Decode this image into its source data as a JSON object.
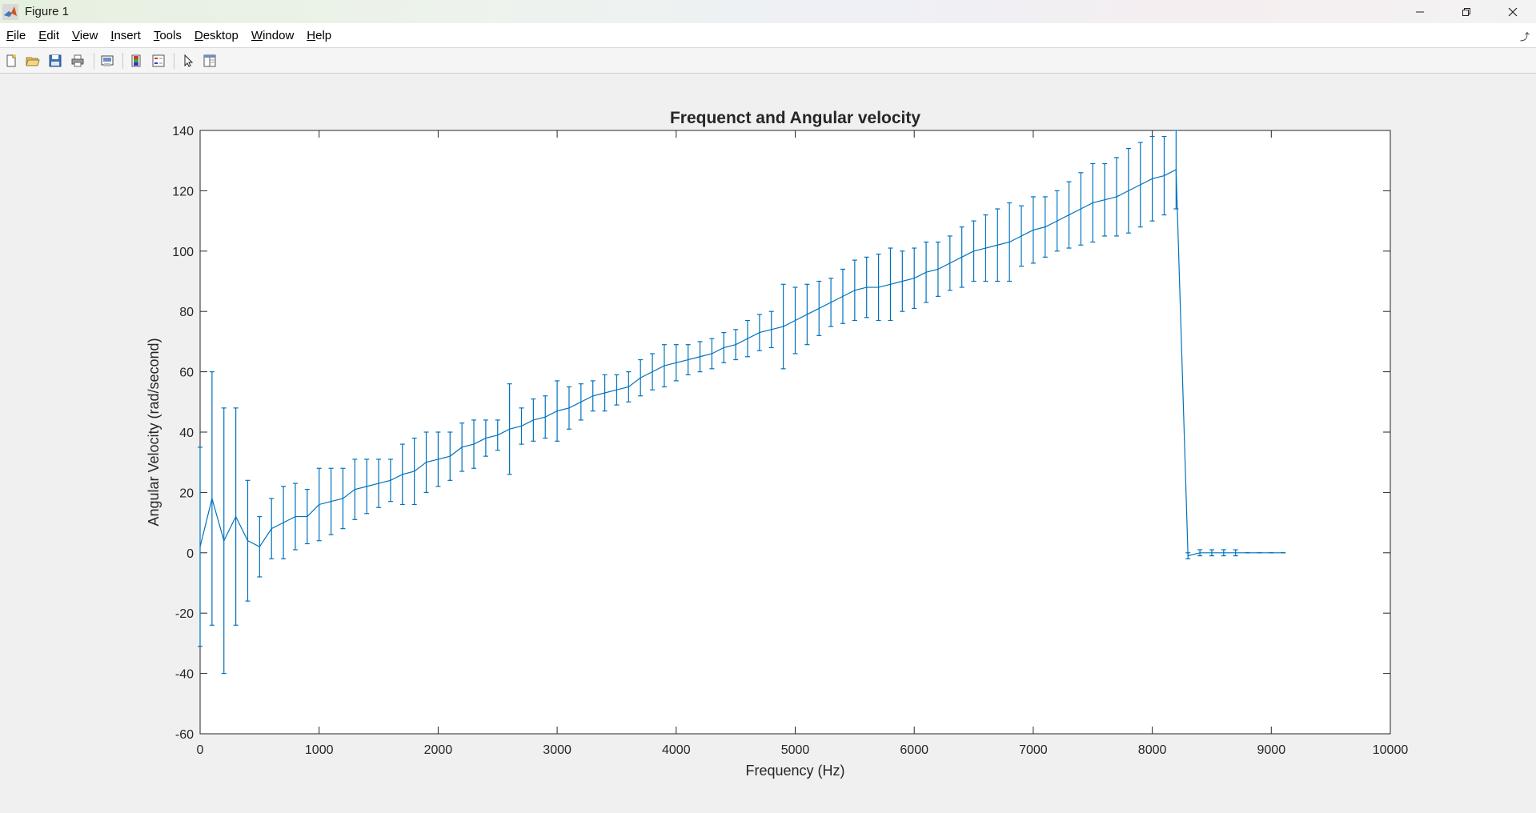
{
  "window": {
    "title": "Figure 1",
    "controls": [
      "minimize-icon",
      "restore-icon",
      "close-icon"
    ]
  },
  "menu": {
    "items": [
      "File",
      "Edit",
      "View",
      "Insert",
      "Tools",
      "Desktop",
      "Window",
      "Help"
    ]
  },
  "toolbar": {
    "icons": [
      "new-figure-icon",
      "open-file-icon",
      "save-icon",
      "print-icon",
      "print-preview-icon",
      "colorbar-icon",
      "legend-icon",
      "select-pointer-icon",
      "property-editor-icon"
    ]
  },
  "colors": {
    "line": "#0072BD",
    "axes": "#262626",
    "plot_bg": "#ffffff",
    "figure_bg": "#f0f0f0"
  },
  "chart_data": {
    "type": "line",
    "subtype": "errorbar",
    "title": "Frequenct and Angular velocity",
    "xlabel": "Frequency (Hz)",
    "ylabel": "Angular Velocity (rad/second)",
    "xlim": [
      0,
      10000
    ],
    "ylim": [
      -60,
      140
    ],
    "xticks": [
      0,
      1000,
      2000,
      3000,
      4000,
      5000,
      6000,
      7000,
      8000,
      9000,
      10000
    ],
    "yticks": [
      -60,
      -40,
      -20,
      0,
      20,
      40,
      60,
      80,
      100,
      120,
      140
    ],
    "grid": false,
    "series": [
      {
        "name": "Angular velocity",
        "x": [
          0,
          100,
          200,
          300,
          400,
          500,
          600,
          700,
          800,
          900,
          1000,
          1100,
          1200,
          1300,
          1400,
          1500,
          1600,
          1700,
          1800,
          1900,
          2000,
          2100,
          2200,
          2300,
          2400,
          2500,
          2600,
          2700,
          2800,
          2900,
          3000,
          3100,
          3200,
          3300,
          3400,
          3500,
          3600,
          3700,
          3800,
          3900,
          4000,
          4100,
          4200,
          4300,
          4400,
          4500,
          4600,
          4700,
          4800,
          4900,
          5000,
          5100,
          5200,
          5300,
          5400,
          5500,
          5600,
          5700,
          5800,
          5900,
          6000,
          6100,
          6200,
          6300,
          6400,
          6500,
          6600,
          6700,
          6800,
          6900,
          7000,
          7100,
          7200,
          7300,
          7400,
          7500,
          7600,
          7700,
          7800,
          7900,
          8000,
          8100,
          8200,
          8300,
          8400,
          8500,
          8600,
          8700,
          8800,
          8900,
          9000,
          9100
        ],
        "y": [
          2,
          18,
          4,
          12,
          4,
          2,
          8,
          10,
          12,
          12,
          16,
          17,
          18,
          21,
          22,
          23,
          24,
          26,
          27,
          30,
          31,
          32,
          35,
          36,
          38,
          39,
          41,
          42,
          44,
          45,
          47,
          48,
          50,
          52,
          53,
          54,
          55,
          58,
          60,
          62,
          63,
          64,
          65,
          66,
          68,
          69,
          71,
          73,
          74,
          75,
          77,
          79,
          81,
          83,
          85,
          87,
          88,
          88,
          89,
          90,
          91,
          93,
          94,
          96,
          98,
          100,
          101,
          102,
          103,
          105,
          107,
          108,
          110,
          112,
          114,
          116,
          117,
          118,
          120,
          122,
          124,
          125,
          127,
          -1,
          0,
          0,
          0,
          0,
          0,
          0,
          0,
          0
        ],
        "err": [
          33,
          42,
          44,
          36,
          20,
          10,
          10,
          12,
          11,
          9,
          12,
          11,
          10,
          10,
          9,
          8,
          7,
          10,
          11,
          10,
          9,
          8,
          8,
          8,
          6,
          5,
          15,
          6,
          7,
          7,
          10,
          7,
          6,
          5,
          6,
          5,
          5,
          6,
          6,
          7,
          6,
          5,
          5,
          5,
          5,
          5,
          6,
          6,
          6,
          14,
          11,
          10,
          9,
          8,
          9,
          10,
          10,
          11,
          12,
          10,
          10,
          10,
          9,
          9,
          10,
          10,
          11,
          12,
          13,
          10,
          11,
          10,
          10,
          11,
          12,
          13,
          12,
          13,
          14,
          14,
          14,
          13,
          13,
          1,
          1,
          1,
          1,
          1,
          0,
          0,
          0,
          0
        ]
      }
    ]
  }
}
